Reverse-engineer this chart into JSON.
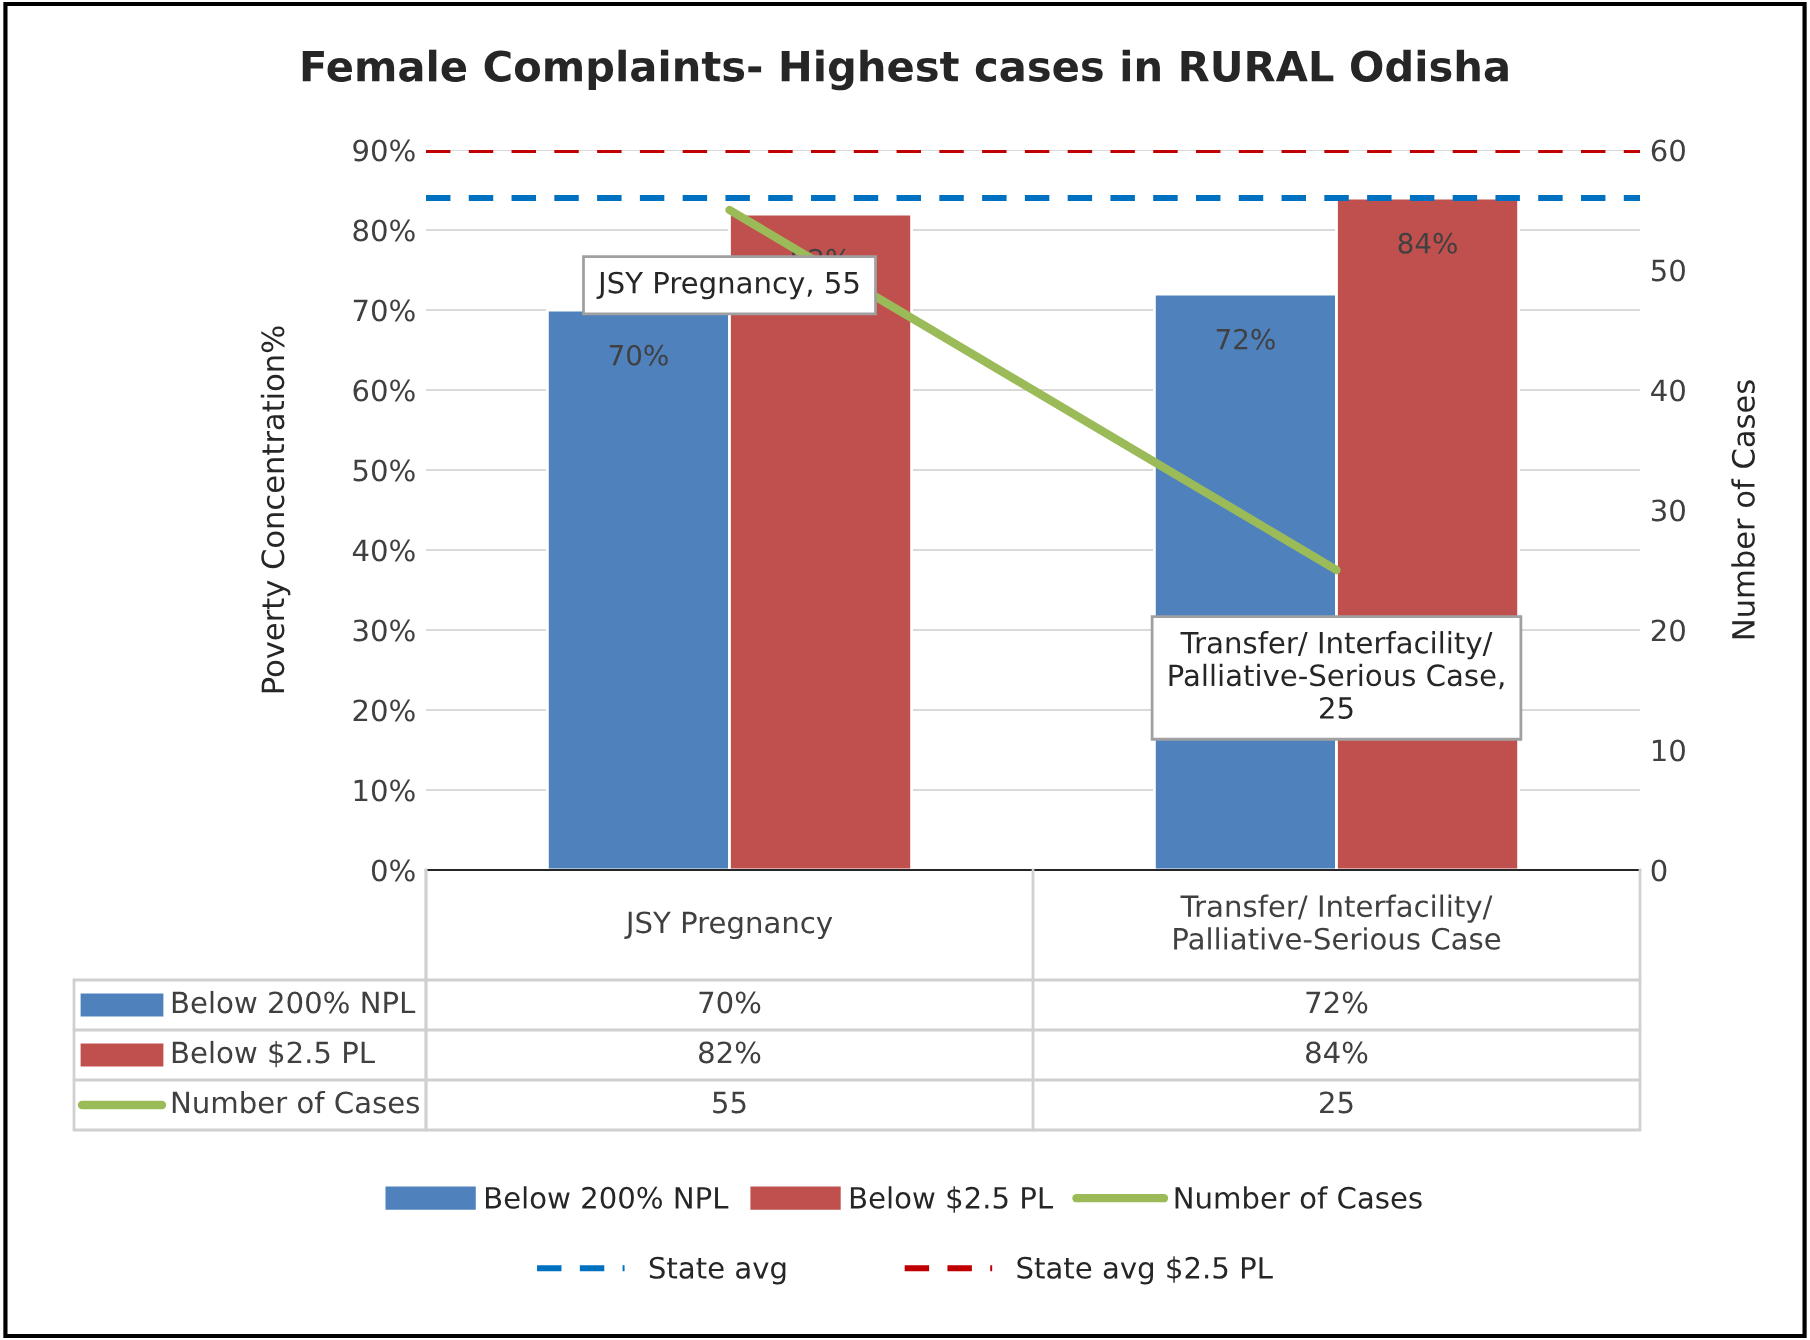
{
  "chart_data": {
    "type": "bar",
    "title": "Female Complaints- Highest cases in RURAL Odisha",
    "ylabel": "Poverty Concentration%",
    "y2label": "Number of Cases",
    "categories": [
      "JSY Pregnancy",
      "Transfer/ Interfacility/ Palliative-Serious Case"
    ],
    "series": [
      {
        "name": "Below 200% NPL",
        "color": "#4f81bd",
        "values": [
          70,
          72
        ],
        "value_labels": [
          "70%",
          "72%"
        ]
      },
      {
        "name": "Below $2.5 PL",
        "color": "#c0504d",
        "values": [
          82,
          84
        ],
        "value_labels": [
          "82%",
          "84%"
        ]
      },
      {
        "name": "Number of Cases",
        "type": "line",
        "axis": "y2",
        "color": "#9bbb59",
        "values": [
          55,
          25
        ],
        "value_labels": [
          "55",
          "25"
        ]
      }
    ],
    "annotations": [
      "JSY Pregnancy, 55",
      "Transfer/ Interfacility/ Palliative-Serious Case, 25"
    ],
    "ylim": [
      0,
      90
    ],
    "yticks": [
      {
        "value": 0,
        "label": "0%"
      },
      {
        "value": 10,
        "label": "10%"
      },
      {
        "value": 20,
        "label": "20%"
      },
      {
        "value": 30,
        "label": "30%"
      },
      {
        "value": 40,
        "label": "40%"
      },
      {
        "value": 50,
        "label": "50%"
      },
      {
        "value": 60,
        "label": "60%"
      },
      {
        "value": 70,
        "label": "70%"
      },
      {
        "value": 80,
        "label": "80%"
      },
      {
        "value": 90,
        "label": "90%"
      }
    ],
    "y2lim": [
      0,
      60
    ],
    "y2ticks": [
      0,
      10,
      20,
      30,
      40,
      50,
      60
    ],
    "ref_lines": [
      {
        "axis": "y",
        "value": 84,
        "label": "State avg",
        "color": "#0070c0",
        "line_style": "dashed"
      },
      {
        "axis": "y",
        "value": 90,
        "label": "State avg $2.5 PL",
        "color": "#c00000",
        "line_style": "dashed"
      }
    ],
    "data_labels": true,
    "grid": "y",
    "legend": "bottom"
  }
}
